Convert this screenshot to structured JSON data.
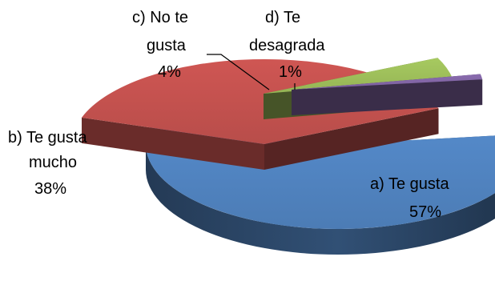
{
  "chart_data": {
    "type": "pie",
    "style": "3d-exploded",
    "title": "",
    "slices": [
      {
        "key": "a",
        "label_lines": [
          "a)   Te gusta",
          "57%"
        ],
        "value": 57,
        "color": "#4F81BD"
      },
      {
        "key": "b",
        "label_lines": [
          "b)   Te gusta",
          "mucho",
          "38%"
        ],
        "value": 38,
        "color": "#C0504D"
      },
      {
        "key": "c",
        "label_lines": [
          "c)    No te",
          "gusta",
          "4%"
        ],
        "value": 4,
        "color": "#9BBB59"
      },
      {
        "key": "d",
        "label_lines": [
          "d)   Te",
          "desagrada",
          "1%"
        ],
        "value": 1,
        "color": "#8064A2"
      }
    ]
  }
}
